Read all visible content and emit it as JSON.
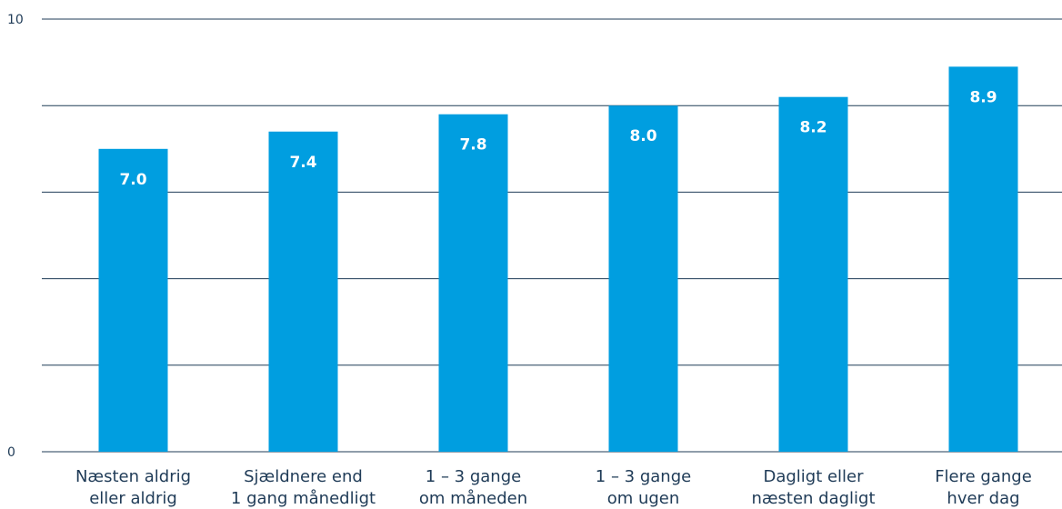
{
  "chart_data": {
    "type": "bar",
    "categories": [
      [
        "Næsten aldrig",
        "eller aldrig"
      ],
      [
        "Sjældnere end",
        "1 gang månedligt"
      ],
      [
        "1 – 3 gange",
        "om måneden"
      ],
      [
        "1 – 3 gange",
        "om ugen"
      ],
      [
        "Dagligt eller",
        "næsten dagligt"
      ],
      [
        "Flere gange",
        "hver dag"
      ]
    ],
    "values": [
      7.0,
      7.4,
      7.8,
      8.0,
      8.2,
      8.9
    ],
    "value_labels": [
      "7.0",
      "7.4",
      "7.8",
      "8.0",
      "8.2",
      "8.9"
    ],
    "ylim": [
      0,
      10
    ],
    "yticks": [
      0,
      2,
      4,
      6,
      8,
      10
    ],
    "ytick_labels": [
      "0",
      "",
      "",
      "",
      "",
      "10"
    ],
    "grid": true,
    "colors": {
      "bar": "#009ee0",
      "text": "#1f3b57",
      "grid": "#1f3b57",
      "label": "#ffffff"
    }
  }
}
